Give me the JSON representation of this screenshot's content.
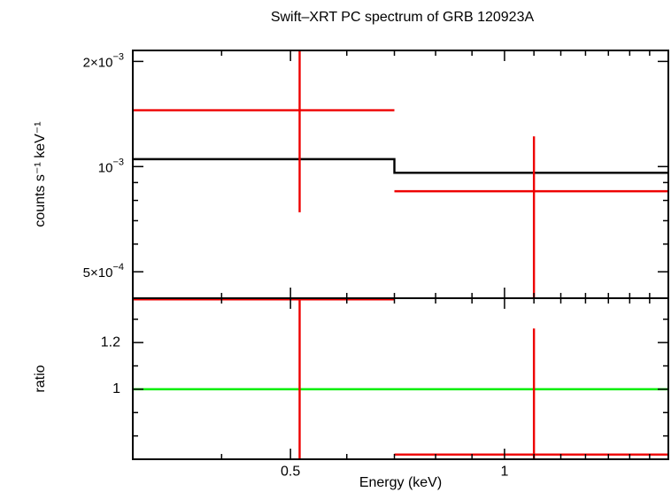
{
  "chart_data": [
    {
      "panel": "spectrum",
      "type": "step+errorbar",
      "title": "Swift–XRT PC spectrum of GRB 120923A",
      "xlabel": "Energy (keV)",
      "ylabel": "counts s⁻¹ keV⁻¹",
      "xscale": "log",
      "yscale": "log",
      "xlim": [
        0.3,
        1.7
      ],
      "ylim": [
        0.00042,
        0.00215
      ],
      "ytick_labels": [
        {
          "value": 0.002,
          "mantissa": "2×10",
          "exp": "−3"
        },
        {
          "value": 0.001,
          "mantissa": "10",
          "exp": "−3"
        },
        {
          "value": 0.0005,
          "mantissa": "5×10",
          "exp": "−4"
        }
      ],
      "series": [
        {
          "name": "data",
          "color": "#ee0000",
          "points": [
            {
              "x_lo": 0.3,
              "x_hi": 0.7,
              "x": 0.515,
              "y": 0.00145,
              "y_lo": 0.00074,
              "y_hi": 0.00215
            },
            {
              "x_lo": 0.7,
              "x_hi": 1.7,
              "x": 1.1,
              "y": 0.00085,
              "y_lo": 0.00042,
              "y_hi": 0.00122
            }
          ]
        },
        {
          "name": "model",
          "color": "#000000",
          "bins": [
            {
              "x_lo": 0.3,
              "x_hi": 0.7,
              "y": 0.00105
            },
            {
              "x_lo": 0.7,
              "x_hi": 1.7,
              "y": 0.00096
            }
          ]
        }
      ]
    },
    {
      "panel": "ratio",
      "type": "errorbar",
      "xlabel": "Energy (keV)",
      "ylabel": "ratio",
      "xscale": "log",
      "xlim": [
        0.3,
        1.7
      ],
      "ylim": [
        0.7,
        1.39
      ],
      "xtick_labels": [
        {
          "value": 0.5,
          "label": "0.5"
        },
        {
          "value": 1,
          "label": "1"
        }
      ],
      "ytick_labels": [
        {
          "value": 1.2,
          "label": "1.2"
        },
        {
          "value": 1,
          "label": "1"
        }
      ],
      "reference_line": {
        "y": 1,
        "color": "#00ee00"
      },
      "series": [
        {
          "name": "ratio",
          "color": "#ee0000",
          "points": [
            {
              "x_lo": 0.3,
              "x_hi": 0.7,
              "x": 0.515,
              "y": 1.385,
              "y_lo": 0.7,
              "y_hi": 1.39
            },
            {
              "x_lo": 0.7,
              "x_hi": 1.7,
              "x": 1.1,
              "y": 0.72,
              "y_lo": 0.7,
              "y_hi": 1.26
            }
          ]
        }
      ]
    }
  ]
}
